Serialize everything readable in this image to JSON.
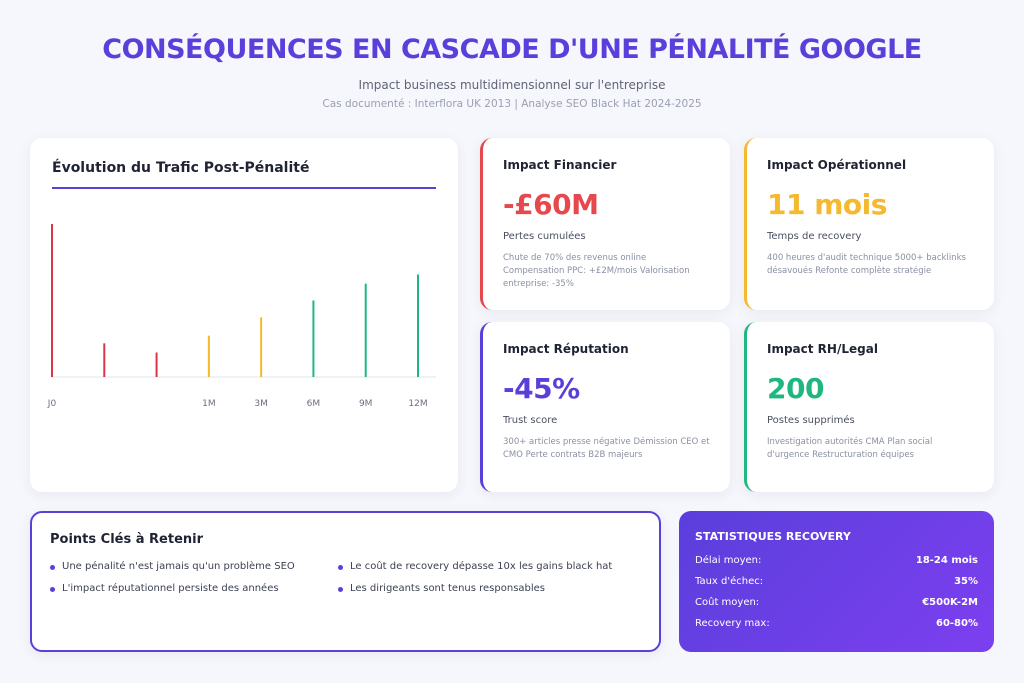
{
  "header": {
    "title": "CONSÉQUENCES EN CASCADE D'UNE PÉNALITÉ GOOGLE",
    "subtitle": "Impact business multidimensionnel sur l'entreprise",
    "source": "Cas documenté : Interflora UK 2013 | Analyse SEO Black Hat 2024-2025"
  },
  "chart_data": {
    "type": "bar",
    "title": "Évolution du Trafic Post-Pénalité",
    "categories": [
      "J0",
      null,
      null,
      "1M",
      "3M",
      "6M",
      "9M",
      "12M"
    ],
    "values": [
      100,
      22,
      16,
      27,
      39,
      50,
      61,
      67
    ],
    "colors": [
      "#dc3545",
      "#dc3545",
      "#dc3545",
      "#f5b82e",
      "#f5b82e",
      "#1fb77f",
      "#1fb77f",
      "#1fb77f"
    ],
    "ylim": [
      0,
      100
    ]
  },
  "cards": [
    {
      "title": "Impact Financier",
      "value": "-£60M",
      "label": "Pertes cumulées",
      "detail": "Chute de 70% des revenus online Compensation PPC: +£2M/mois Valorisation entreprise: -35%",
      "color": "#e5484d"
    },
    {
      "title": "Impact Opérationnel",
      "value": "11 mois",
      "label": "Temps de recovery",
      "detail": "400 heures d'audit technique 5000+ backlinks désavoués Refonte complète stratégie",
      "color": "#f5b82e"
    },
    {
      "title": "Impact Réputation",
      "value": "-45%",
      "label": "Trust score",
      "detail": "300+ articles presse négative Démission CEO et CMO Perte contrats B2B majeurs",
      "color": "#5b3fd9"
    },
    {
      "title": "Impact RH/Legal",
      "value": "200",
      "label": "Postes supprimés",
      "detail": "Investigation autorités CMA Plan social d'urgence Restructuration équipes",
      "color": "#1fb77f"
    }
  ],
  "key_points": {
    "title": "Points Clés à Retenir",
    "items": [
      "Une pénalité n'est jamais qu'un problème SEO",
      "Le coût de recovery dépasse 10x les gains black hat",
      "L'impact réputationnel persiste des années",
      "Les dirigeants sont tenus responsables"
    ]
  },
  "stats": {
    "title": "STATISTIQUES RECOVERY",
    "rows": [
      {
        "label": "Délai moyen:",
        "value": "18-24 mois"
      },
      {
        "label": "Taux d'échec:",
        "value": "35%"
      },
      {
        "label": "Coût moyen:",
        "value": "€500K-2M"
      },
      {
        "label": "Recovery max:",
        "value": "60-80%"
      }
    ]
  }
}
